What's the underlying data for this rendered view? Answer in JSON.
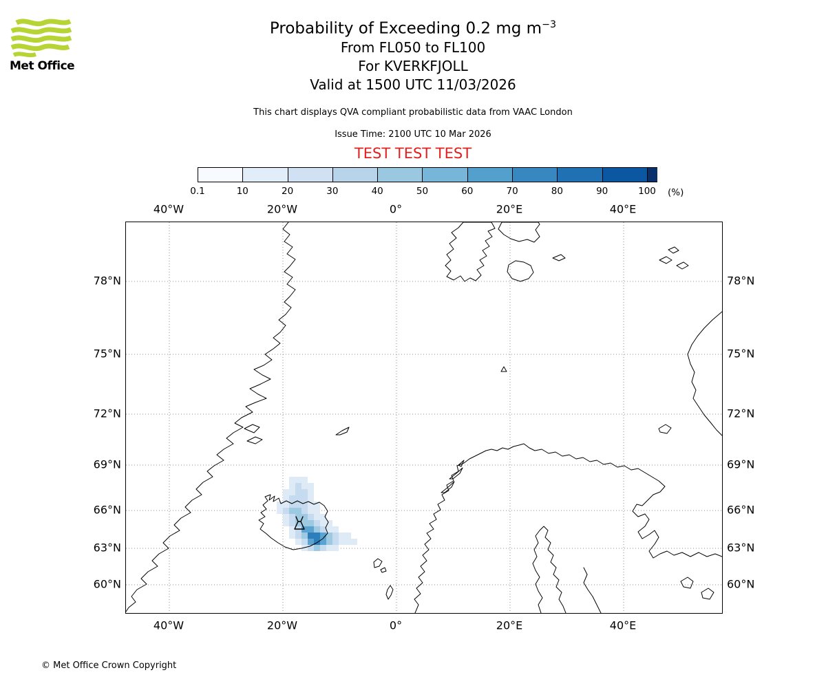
{
  "logo": {
    "brand": "Met Office",
    "green": "#b6d433"
  },
  "header": {
    "title_main": "Probability of Exceeding 0.2 mg m",
    "title_sup": "−3",
    "line2": "From FL050 to FL100",
    "line3": "For KVERKFJOLL",
    "line4": "Valid at 1500 UTC 11/03/2026",
    "note": "This chart displays QVA compliant probabilistic data from VAAC London",
    "issue": "Issue Time: 2100 UTC 10 Mar 2026",
    "test_banner": "TEST TEST TEST",
    "test_color": "#e01f1f"
  },
  "colorbar": {
    "unit": "(%)",
    "ticks": [
      "0.1",
      "10",
      "20",
      "30",
      "40",
      "50",
      "60",
      "70",
      "80",
      "90",
      "100"
    ],
    "segment_colors": [
      "#f7fbff",
      "#e1edf8",
      "#cfe1f2",
      "#b7d4ea",
      "#9ac8e0",
      "#77b5d9",
      "#53a0cd",
      "#3787c0",
      "#2070b4",
      "#0b57a2"
    ],
    "overflow_color": "#08306b"
  },
  "map": {
    "lon_labels": [
      "40°W",
      "20°W",
      "0°",
      "20°E",
      "40°E"
    ],
    "lat_labels": [
      "78°N",
      "75°N",
      "72°N",
      "69°N",
      "66°N",
      "63°N",
      "60°N"
    ],
    "volcano_name": "KVERKFJOLL"
  },
  "chart_data": {
    "type": "heatmap",
    "title": "Probability of Exceeding 0.2 mg m-3, FL050 to FL100, KVERKFJOLL, valid 1500 UTC 11/03/2026",
    "units": "%",
    "legend_position": "top",
    "notes": "Pixelated probability field centred over Iceland, extending north and east of the volcano; highest probabilities (~60-70%) just south-east of Kverkfjoll.",
    "levels": [
      {
        "level": 1,
        "range": "0.1-10%",
        "color": "#deebf7"
      },
      {
        "level": 2,
        "range": "10-30%",
        "color": "#c6dbef"
      },
      {
        "level": 3,
        "range": "30-50%",
        "color": "#9ecae1"
      },
      {
        "level": 4,
        "range": "50-60%",
        "color": "#5ba3d0"
      },
      {
        "level": 5,
        "range": "60-70%",
        "color": "#2e7ebc"
      }
    ],
    "grid_rows": [
      "...111........",
      "...1211.......",
      "..11221.......",
      "..12221.......",
      ".1122211......",
      ".1233211......",
      "..1233211.....",
      "..12333211....",
      "...12443211...",
      "...1235543211.",
      "....1245432111",
      ".....123211..."
    ]
  },
  "footer": {
    "copyright": "© Met Office Crown Copyright"
  }
}
